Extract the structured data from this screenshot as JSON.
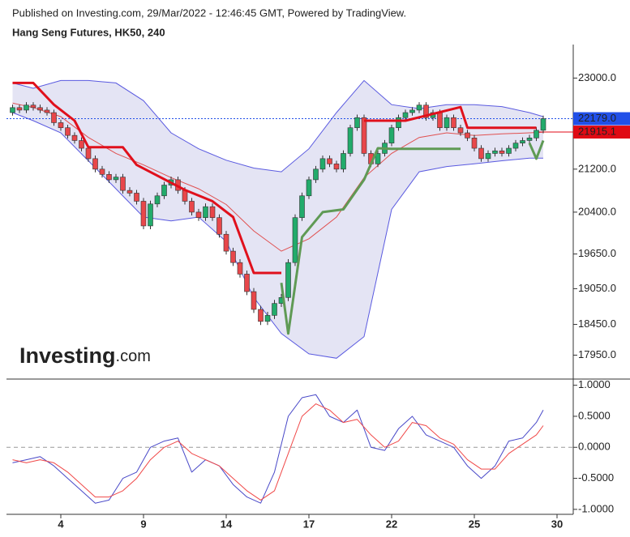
{
  "source": "Published on Investing.com, 29/Mar/2022 - 12:46:45 GMT, Powered by TradingView.",
  "logo": {
    "brand": "Investing",
    "suffix": ".com"
  },
  "chart_data": [
    {
      "type": "candlestick",
      "title": "Hang Seng Futures, HK50, 240",
      "log_scale": true,
      "up_color": "#22ab6b",
      "down_color": "#e8474a",
      "categories": [
        null,
        null,
        null,
        null,
        null,
        null,
        null,
        "4",
        null,
        null,
        null,
        null,
        null,
        null,
        null,
        null,
        null,
        null,
        null,
        "9",
        null,
        null,
        null,
        null,
        null,
        null,
        null,
        null,
        null,
        null,
        null,
        "14",
        null,
        null,
        null,
        null,
        null,
        null,
        null,
        null,
        null,
        null,
        null,
        "17",
        null,
        null,
        null,
        null,
        null,
        null,
        null,
        null,
        null,
        null,
        null,
        "22",
        null,
        null,
        null,
        null,
        null,
        null,
        null,
        null,
        null,
        null,
        null,
        "25",
        null,
        null,
        null,
        null,
        null,
        null,
        null,
        null,
        null,
        null,
        null,
        "30"
      ],
      "open": [
        22300,
        22400,
        22350,
        22450,
        22400,
        22350,
        22300,
        22100,
        22000,
        21850,
        21750,
        21600,
        21400,
        21200,
        21100,
        21000,
        21050,
        20800,
        20750,
        20600,
        20150,
        20550,
        20700,
        20900,
        21000,
        20800,
        20600,
        20400,
        20300,
        20500,
        20300,
        20000,
        19700,
        19500,
        19300,
        19000,
        18700,
        18500,
        18600,
        18800,
        18900,
        19500,
        20300,
        20700,
        21000,
        21200,
        21400,
        21300,
        21200,
        21500,
        22000,
        22200,
        21500,
        21300,
        21500,
        21700,
        22000,
        22200,
        22300,
        22350,
        22450,
        22200,
        22300,
        22000,
        22200,
        22000,
        21900,
        21800,
        21600,
        21400,
        21500,
        21550,
        21500,
        21600,
        21700,
        21750,
        21800,
        21950,
        null,
        null
      ],
      "high": [
        22460,
        22460,
        22510,
        22510,
        22460,
        22410,
        22360,
        22160,
        22060,
        21910,
        21810,
        21660,
        21460,
        21260,
        21160,
        21110,
        21110,
        20860,
        20810,
        20660,
        20610,
        20760,
        20960,
        21060,
        21060,
        20860,
        20660,
        20460,
        20560,
        20560,
        20360,
        20060,
        19760,
        19560,
        19360,
        19060,
        18760,
        18660,
        18860,
        18960,
        19560,
        20360,
        20760,
        21060,
        21260,
        21460,
        21460,
        21360,
        21560,
        22060,
        22260,
        22260,
        21560,
        21560,
        21760,
        22060,
        22260,
        22360,
        22410,
        22510,
        22510,
        22360,
        22360,
        22260,
        22260,
        22060,
        21960,
        21860,
        21660,
        21560,
        21610,
        21610,
        21660,
        21760,
        21810,
        21860,
        22010,
        22239,
        null,
        null
      ],
      "low": [
        22240,
        22290,
        22290,
        22340,
        22290,
        22240,
        22040,
        21940,
        21790,
        21690,
        21540,
        21340,
        21140,
        21040,
        20940,
        20940,
        20740,
        20690,
        20540,
        20090,
        20090,
        20490,
        20640,
        20840,
        20740,
        20540,
        20340,
        20240,
        20240,
        20240,
        19940,
        19640,
        19440,
        19240,
        18940,
        18640,
        18440,
        18440,
        18540,
        18740,
        18840,
        19440,
        20240,
        20640,
        20940,
        21140,
        21240,
        21140,
        21140,
        21440,
        21940,
        21440,
        21240,
        21240,
        21440,
        21640,
        21940,
        22140,
        22240,
        22290,
        22140,
        22140,
        21940,
        21940,
        21940,
        21840,
        21740,
        21540,
        21340,
        21340,
        21440,
        21440,
        21440,
        21540,
        21640,
        21690,
        21740,
        21890,
        null,
        null
      ],
      "close": [
        22400,
        22350,
        22450,
        22400,
        22350,
        22300,
        22100,
        22000,
        21850,
        21750,
        21600,
        21400,
        21200,
        21100,
        21000,
        21050,
        20800,
        20750,
        20600,
        20150,
        20550,
        20700,
        20900,
        21000,
        20800,
        20600,
        20400,
        20300,
        20500,
        20300,
        20000,
        19700,
        19500,
        19300,
        19000,
        18700,
        18500,
        18600,
        18800,
        18900,
        19500,
        20300,
        20700,
        21000,
        21200,
        21400,
        21300,
        21200,
        21500,
        22000,
        22200,
        21500,
        21300,
        21500,
        21700,
        22000,
        22200,
        22300,
        22350,
        22450,
        22200,
        22300,
        22000,
        22200,
        22000,
        21900,
        21800,
        21600,
        21400,
        21500,
        21550,
        21500,
        21600,
        21700,
        21750,
        21800,
        21950,
        22179,
        null,
        null
      ],
      "ylim": [
        17570,
        23700
      ],
      "yticks": [
        {
          "value": 23000,
          "label": "23000.0"
        },
        {
          "value": 21200,
          "label": "21200.0"
        },
        {
          "value": 20400,
          "label": "20400.0"
        },
        {
          "value": 19650,
          "label": "19650.0"
        },
        {
          "value": 19050,
          "label": "19050.0"
        },
        {
          "value": 18450,
          "label": "18450.0"
        },
        {
          "value": 17950,
          "label": "17950.0"
        }
      ],
      "bands": {
        "line_color": "#5a5ae0",
        "fill": "#e4e4f4",
        "middle_color": "#e05050",
        "x": [
          0,
          3,
          7,
          11,
          15,
          19,
          23,
          27,
          31,
          35,
          39,
          43,
          47,
          51,
          55,
          59,
          63,
          67,
          71,
          75,
          77
        ],
        "upper": [
          22900,
          22790,
          22950,
          22950,
          22900,
          22540,
          21900,
          21590,
          21370,
          21220,
          21150,
          21590,
          22300,
          22950,
          22460,
          22380,
          22460,
          22460,
          22420,
          22300,
          22220
        ],
        "middle": [
          22490,
          22400,
          22220,
          21810,
          21500,
          21280,
          21040,
          20830,
          20540,
          20060,
          19700,
          19920,
          20310,
          21040,
          21500,
          21810,
          21900,
          21850,
          21880,
          21900,
          21915
        ],
        "lower": [
          22300,
          22140,
          21900,
          21360,
          20830,
          20310,
          20240,
          20310,
          19870,
          18900,
          18300,
          17970,
          17900,
          18250,
          20450,
          21150,
          21250,
          21300,
          21360,
          21410,
          21410
        ]
      },
      "stops": [
        {
          "color": "#e0101c",
          "x": [
            0,
            3,
            6,
            9,
            11,
            16,
            18,
            25,
            29,
            32,
            35,
            39,
            40,
            51,
            52,
            57,
            65,
            66,
            76
          ],
          "values": [
            22900,
            22900,
            22460,
            22140,
            21620,
            21620,
            21280,
            20810,
            20600,
            20310,
            19320,
            19320,
            null,
            22140,
            22140,
            22140,
            22410,
            22000,
            22000
          ]
        },
        {
          "color": "#5f9a55",
          "x": [
            39,
            40,
            42,
            45,
            48,
            51,
            53,
            55,
            65,
            66,
            75,
            76,
            77
          ],
          "values": [
            19150,
            18300,
            19950,
            20400,
            20450,
            21000,
            21600,
            21590,
            21590,
            null,
            21700,
            21400,
            21750
          ]
        }
      ],
      "price_labels": [
        {
          "value": 22179.0,
          "label": "22179.0",
          "color": "#2150e8"
        },
        {
          "value": 21915.1,
          "label": "21915.1",
          "color": "#e00a14"
        }
      ]
    },
    {
      "type": "line",
      "ylim": [
        -1.08,
        1.1
      ],
      "yticks": [
        {
          "value": 1,
          "label": "1.0000"
        },
        {
          "value": 0.5,
          "label": "0.5000"
        },
        {
          "value": 0,
          "label": "0.0000"
        },
        {
          "value": -0.5,
          "label": "-0.5000"
        },
        {
          "value": -1,
          "label": "-1.0000"
        }
      ],
      "reference_line": 0,
      "series": [
        {
          "color": "#4848c8",
          "x": [
            0,
            2,
            4,
            6,
            8,
            10,
            12,
            14,
            16,
            18,
            20,
            22,
            24,
            26,
            28,
            30,
            32,
            34,
            36,
            38,
            40,
            42,
            44,
            46,
            48,
            50,
            52,
            54,
            56,
            58,
            60,
            62,
            64,
            66,
            68,
            70,
            72,
            74,
            76,
            77
          ],
          "values": [
            -0.25,
            -0.2,
            -0.15,
            -0.3,
            -0.5,
            -0.7,
            -0.9,
            -0.85,
            -0.5,
            -0.4,
            0.0,
            0.1,
            0.15,
            -0.4,
            -0.2,
            -0.3,
            -0.6,
            -0.8,
            -0.9,
            -0.4,
            0.5,
            0.8,
            0.85,
            0.5,
            0.4,
            0.6,
            0.0,
            -0.05,
            0.3,
            0.5,
            0.2,
            0.1,
            0.0,
            -0.3,
            -0.5,
            -0.3,
            0.1,
            0.15,
            0.4,
            0.6
          ]
        },
        {
          "color": "#f04848",
          "x": [
            0,
            2,
            4,
            6,
            8,
            10,
            12,
            14,
            16,
            18,
            20,
            22,
            24,
            26,
            28,
            30,
            32,
            34,
            36,
            38,
            40,
            42,
            44,
            46,
            48,
            50,
            52,
            54,
            56,
            58,
            60,
            62,
            64,
            66,
            68,
            70,
            72,
            74,
            76,
            77
          ],
          "values": [
            -0.2,
            -0.25,
            -0.2,
            -0.25,
            -0.4,
            -0.6,
            -0.8,
            -0.8,
            -0.7,
            -0.5,
            -0.2,
            0.0,
            0.1,
            -0.1,
            -0.2,
            -0.3,
            -0.5,
            -0.7,
            -0.85,
            -0.7,
            -0.1,
            0.5,
            0.7,
            0.6,
            0.4,
            0.45,
            0.2,
            0.0,
            0.1,
            0.4,
            0.35,
            0.15,
            0.05,
            -0.2,
            -0.35,
            -0.35,
            -0.1,
            0.05,
            0.2,
            0.35
          ]
        }
      ]
    }
  ]
}
